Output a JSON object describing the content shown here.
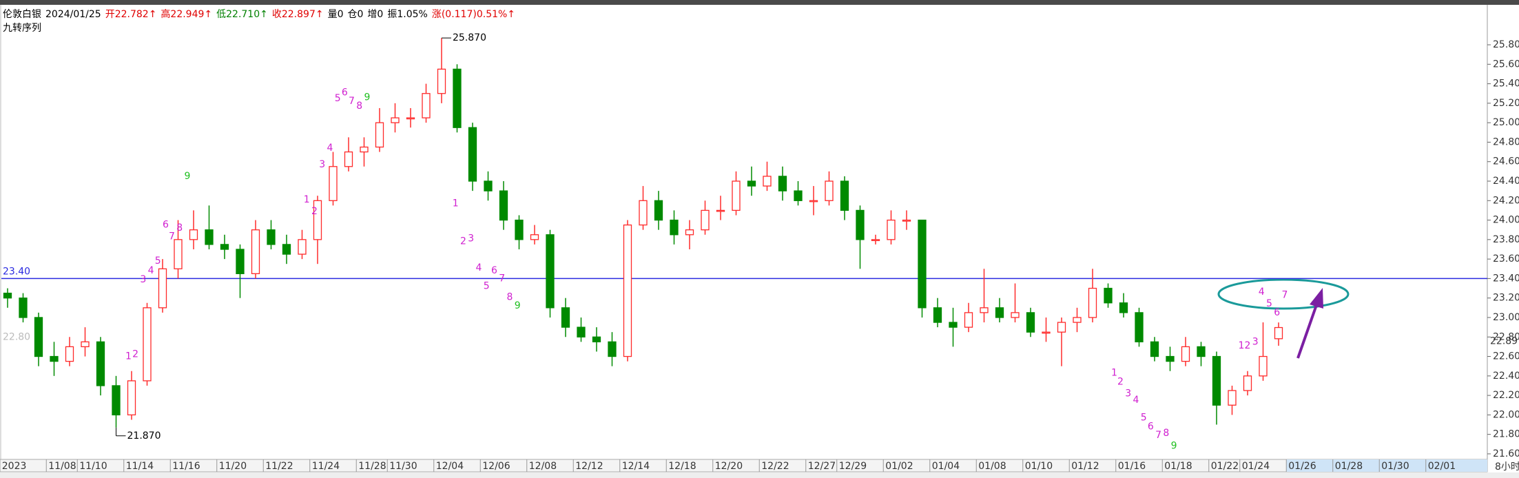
{
  "chart_data": {
    "type": "candlestick",
    "header_items": [
      {
        "text": "伦敦白银",
        "color": "#000000"
      },
      {
        "text": "2024/01/25",
        "color": "#000000"
      },
      {
        "text": "开22.782↑",
        "color": "#e00000"
      },
      {
        "text": "高22.949↑",
        "color": "#e00000"
      },
      {
        "text": "低22.710↑",
        "color": "#008000"
      },
      {
        "text": "收22.897↑",
        "color": "#e00000"
      },
      {
        "text": "量0",
        "color": "#000000"
      },
      {
        "text": "仓0",
        "color": "#000000"
      },
      {
        "text": "增0",
        "color": "#000000"
      },
      {
        "text": "振1.05%",
        "color": "#000000"
      },
      {
        "text": "涨(0.117)0.51%↑",
        "color": "#e00000"
      }
    ],
    "subtitle": "九转序列",
    "period": "8小时",
    "up_color": "#ff2a2a",
    "down_color": "#008a00",
    "categories": [
      "2023",
      null,
      null,
      "11/08",
      null,
      "11/10",
      null,
      null,
      "11/14",
      null,
      null,
      "11/16",
      null,
      null,
      "11/20",
      null,
      null,
      "11/22",
      null,
      null,
      "11/24",
      null,
      null,
      "11/28",
      null,
      "11/30",
      null,
      null,
      "12/04",
      null,
      null,
      "12/06",
      null,
      null,
      "12/08",
      null,
      null,
      "12/12",
      null,
      null,
      "12/14",
      null,
      null,
      "12/18",
      null,
      null,
      "12/20",
      null,
      null,
      "12/22",
      null,
      null,
      "12/27",
      null,
      "12/29",
      null,
      null,
      "01/02",
      null,
      null,
      "01/04",
      null,
      null,
      "01/08",
      null,
      null,
      "01/10",
      null,
      null,
      "01/12",
      null,
      null,
      "01/16",
      null,
      null,
      "01/18",
      null,
      null,
      "01/22",
      null,
      "01/24",
      null,
      null,
      "01/26",
      null,
      null,
      "01/28",
      null,
      null,
      "01/30",
      null,
      null,
      "02/01",
      null,
      null
    ],
    "candles": [
      [
        23.25,
        23.3,
        23.1,
        23.2
      ],
      [
        23.2,
        23.25,
        22.95,
        23.0
      ],
      [
        23.0,
        23.05,
        22.5,
        22.6
      ],
      [
        22.6,
        22.75,
        22.4,
        22.55
      ],
      [
        22.55,
        22.8,
        22.5,
        22.7
      ],
      [
        22.7,
        22.9,
        22.6,
        22.75
      ],
      [
        22.75,
        22.8,
        22.2,
        22.3
      ],
      [
        22.3,
        22.4,
        21.87,
        22.0
      ],
      [
        22.0,
        22.45,
        21.95,
        22.35
      ],
      [
        22.35,
        23.15,
        22.3,
        23.1
      ],
      [
        23.1,
        23.6,
        23.05,
        23.5
      ],
      [
        23.5,
        24.0,
        23.4,
        23.8
      ],
      [
        23.8,
        24.1,
        23.7,
        23.9
      ],
      [
        23.9,
        24.15,
        23.7,
        23.75
      ],
      [
        23.75,
        23.85,
        23.6,
        23.7
      ],
      [
        23.7,
        23.75,
        23.2,
        23.45
      ],
      [
        23.45,
        24.0,
        23.4,
        23.9
      ],
      [
        23.9,
        24.0,
        23.7,
        23.75
      ],
      [
        23.75,
        23.85,
        23.55,
        23.65
      ],
      [
        23.65,
        23.9,
        23.6,
        23.8
      ],
      [
        23.8,
        24.25,
        23.55,
        24.2
      ],
      [
        24.2,
        24.7,
        24.15,
        24.55
      ],
      [
        24.55,
        24.85,
        24.5,
        24.7
      ],
      [
        24.7,
        24.85,
        24.55,
        24.75
      ],
      [
        24.75,
        25.15,
        24.7,
        25.0
      ],
      [
        25.0,
        25.2,
        24.9,
        25.05
      ],
      [
        25.05,
        25.15,
        24.95,
        25.05
      ],
      [
        25.05,
        25.4,
        25.0,
        25.3
      ],
      [
        25.3,
        25.87,
        25.2,
        25.55
      ],
      [
        25.55,
        25.6,
        24.9,
        24.95
      ],
      [
        24.95,
        25.0,
        24.3,
        24.4
      ],
      [
        24.4,
        24.5,
        24.2,
        24.3
      ],
      [
        24.3,
        24.4,
        23.9,
        24.0
      ],
      [
        24.0,
        24.05,
        23.7,
        23.8
      ],
      [
        23.8,
        23.95,
        23.75,
        23.85
      ],
      [
        23.85,
        23.9,
        23.0,
        23.1
      ],
      [
        23.1,
        23.2,
        22.8,
        22.9
      ],
      [
        22.9,
        23.0,
        22.75,
        22.8
      ],
      [
        22.8,
        22.9,
        22.65,
        22.75
      ],
      [
        22.75,
        22.85,
        22.5,
        22.6
      ],
      [
        22.6,
        24.0,
        22.55,
        23.95
      ],
      [
        23.95,
        24.35,
        23.9,
        24.2
      ],
      [
        24.2,
        24.3,
        23.9,
        24.0
      ],
      [
        24.0,
        24.1,
        23.75,
        23.85
      ],
      [
        23.85,
        24.0,
        23.7,
        23.9
      ],
      [
        23.9,
        24.2,
        23.85,
        24.1
      ],
      [
        24.1,
        24.25,
        24.0,
        24.1
      ],
      [
        24.1,
        24.5,
        24.05,
        24.4
      ],
      [
        24.4,
        24.55,
        24.25,
        24.35
      ],
      [
        24.35,
        24.6,
        24.3,
        24.45
      ],
      [
        24.45,
        24.55,
        24.2,
        24.3
      ],
      [
        24.3,
        24.4,
        24.15,
        24.2
      ],
      [
        24.2,
        24.35,
        24.05,
        24.2
      ],
      [
        24.2,
        24.5,
        24.15,
        24.4
      ],
      [
        24.4,
        24.45,
        24.0,
        24.1
      ],
      [
        24.1,
        24.15,
        23.5,
        23.8
      ],
      [
        23.8,
        23.85,
        23.75,
        23.8
      ],
      [
        23.8,
        24.1,
        23.75,
        24.0
      ],
      [
        24.0,
        24.1,
        23.9,
        24.0
      ],
      [
        24.0,
        24.0,
        23.0,
        23.1
      ],
      [
        23.1,
        23.2,
        22.9,
        22.95
      ],
      [
        22.95,
        23.1,
        22.7,
        22.9
      ],
      [
        22.9,
        23.15,
        22.85,
        23.05
      ],
      [
        23.05,
        23.5,
        22.95,
        23.1
      ],
      [
        23.1,
        23.2,
        22.95,
        23.0
      ],
      [
        23.0,
        23.35,
        22.95,
        23.05
      ],
      [
        23.05,
        23.1,
        22.8,
        22.85
      ],
      [
        22.85,
        23.0,
        22.75,
        22.85
      ],
      [
        22.85,
        23.0,
        22.5,
        22.95
      ],
      [
        22.95,
        23.1,
        22.85,
        23.0
      ],
      [
        23.0,
        23.5,
        22.95,
        23.3
      ],
      [
        23.3,
        23.35,
        23.1,
        23.15
      ],
      [
        23.15,
        23.25,
        23.0,
        23.05
      ],
      [
        23.05,
        23.1,
        22.7,
        22.75
      ],
      [
        22.75,
        22.8,
        22.55,
        22.6
      ],
      [
        22.6,
        22.7,
        22.45,
        22.55
      ],
      [
        22.55,
        22.8,
        22.5,
        22.7
      ],
      [
        22.7,
        22.75,
        22.5,
        22.6
      ],
      [
        22.6,
        22.65,
        21.9,
        22.1
      ],
      [
        22.1,
        22.3,
        22.0,
        22.25
      ],
      [
        22.25,
        22.45,
        22.2,
        22.4
      ],
      [
        22.4,
        22.95,
        22.35,
        22.6
      ],
      [
        22.782,
        22.949,
        22.71,
        22.897
      ]
    ],
    "ylim": [
      21.543,
      26.175
    ],
    "yticks": [
      {
        "value": 21.6,
        "label": "21.600"
      },
      {
        "value": 21.8,
        "label": "21.800"
      },
      {
        "value": 22.0,
        "label": "22.000"
      },
      {
        "value": 22.2,
        "label": "22.200"
      },
      {
        "value": 22.4,
        "label": "22.400"
      },
      {
        "value": 22.6,
        "label": "22.600"
      },
      {
        "value": 22.8,
        "label": "22.800"
      },
      {
        "value": 23.0,
        "label": "23.000"
      },
      {
        "value": 23.2,
        "label": "23.200"
      },
      {
        "value": 23.4,
        "label": "23.400"
      },
      {
        "value": 23.6,
        "label": "23.600"
      },
      {
        "value": 23.8,
        "label": "23.800"
      },
      {
        "value": 24.0,
        "label": "24.000"
      },
      {
        "value": 24.2,
        "label": "24.200"
      },
      {
        "value": 24.4,
        "label": "24.400"
      },
      {
        "value": 24.6,
        "label": "24.600"
      },
      {
        "value": 24.8,
        "label": "24.800"
      },
      {
        "value": 25.0,
        "label": "25.000"
      },
      {
        "value": 25.2,
        "label": "25.200"
      },
      {
        "value": 25.4,
        "label": "25.400"
      },
      {
        "value": 25.6,
        "label": "25.600"
      },
      {
        "value": 25.8,
        "label": "25.800"
      }
    ],
    "hline": {
      "value": 23.4,
      "label": "23.40",
      "color": "#2a2ae0"
    },
    "left_level": {
      "value": 22.8,
      "label": "22.80"
    },
    "high_marker": {
      "value": 25.87,
      "label": "25.870"
    },
    "low_marker": {
      "value": 21.87,
      "label": "21.870"
    },
    "td_labels": [
      {
        "text": 1,
        "at": [
          7.8,
          22.6
        ]
      },
      {
        "text": 2,
        "at": [
          8.25,
          22.62
        ]
      },
      {
        "text": 3,
        "at": [
          8.75,
          23.39
        ]
      },
      {
        "text": 4,
        "at": [
          9.25,
          23.48
        ]
      },
      {
        "text": 5,
        "at": [
          9.7,
          23.58
        ]
      },
      {
        "text": 6,
        "at": [
          10.2,
          23.95
        ]
      },
      {
        "text": 7,
        "at": [
          10.6,
          23.83
        ]
      },
      {
        "text": 8,
        "at": [
          11.1,
          23.92
        ]
      },
      {
        "text": 9,
        "at": [
          11.6,
          24.45
        ]
      },
      {
        "text": 1,
        "at": [
          19.3,
          24.21
        ]
      },
      {
        "text": 2,
        "at": [
          19.8,
          24.09
        ]
      },
      {
        "text": 3,
        "at": [
          20.3,
          24.57
        ]
      },
      {
        "text": 4,
        "at": [
          20.8,
          24.74
        ]
      },
      {
        "text": 5,
        "at": [
          21.3,
          25.25
        ]
      },
      {
        "text": 6,
        "at": [
          21.75,
          25.31
        ]
      },
      {
        "text": 7,
        "at": [
          22.2,
          25.22
        ]
      },
      {
        "text": 8,
        "at": [
          22.7,
          25.17
        ]
      },
      {
        "text": 9,
        "at": [
          23.2,
          25.26
        ]
      },
      {
        "text": 1,
        "at": [
          28.9,
          24.17
        ]
      },
      {
        "text": 2,
        "at": [
          29.4,
          23.78
        ]
      },
      {
        "text": 3,
        "at": [
          29.9,
          23.81
        ]
      },
      {
        "text": 4,
        "at": [
          30.4,
          23.51
        ]
      },
      {
        "text": 5,
        "at": [
          30.9,
          23.32
        ]
      },
      {
        "text": 6,
        "at": [
          31.4,
          23.48
        ]
      },
      {
        "text": 7,
        "at": [
          31.9,
          23.4
        ]
      },
      {
        "text": 8,
        "at": [
          32.4,
          23.21
        ]
      },
      {
        "text": 9,
        "at": [
          32.9,
          23.12
        ]
      },
      {
        "text": 1,
        "at": [
          71.4,
          22.43
        ]
      },
      {
        "text": 2,
        "at": [
          71.8,
          22.34
        ]
      },
      {
        "text": 3,
        "at": [
          72.3,
          22.22
        ]
      },
      {
        "text": 4,
        "at": [
          72.8,
          22.15
        ]
      },
      {
        "text": 5,
        "at": [
          73.3,
          21.97
        ]
      },
      {
        "text": 6,
        "at": [
          73.75,
          21.88
        ]
      },
      {
        "text": 7,
        "at": [
          74.25,
          21.79
        ]
      },
      {
        "text": 8,
        "at": [
          74.75,
          21.81
        ]
      },
      {
        "text": 9,
        "at": [
          75.25,
          21.68
        ]
      },
      {
        "text": 1,
        "at": [
          79.6,
          22.71
        ]
      },
      {
        "text": 2,
        "at": [
          80.0,
          22.71
        ]
      },
      {
        "text": 3,
        "at": [
          80.5,
          22.75
        ]
      },
      {
        "text": 4,
        "at": [
          80.9,
          23.26
        ]
      },
      {
        "text": 5,
        "at": [
          81.4,
          23.14
        ]
      },
      {
        "text": 6,
        "at": [
          81.9,
          23.05
        ]
      },
      {
        "text": 7,
        "at": [
          82.4,
          23.23
        ]
      }
    ],
    "td_color": "#d020d0",
    "td_nine_color": "#20c020"
  }
}
